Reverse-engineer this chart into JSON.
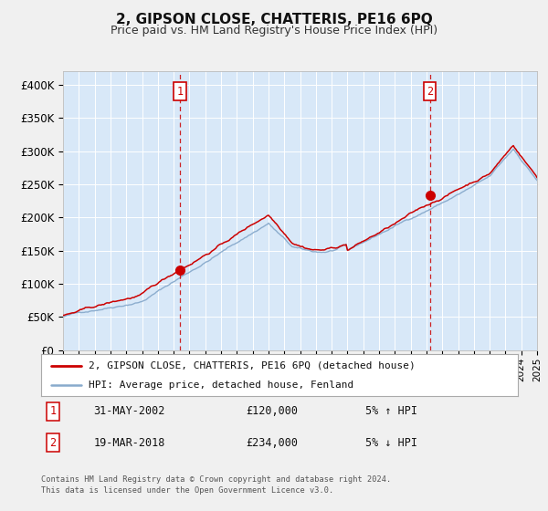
{
  "title": "2, GIPSON CLOSE, CHATTERIS, PE16 6PQ",
  "subtitle": "Price paid vs. HM Land Registry's House Price Index (HPI)",
  "legend_entry1": "2, GIPSON CLOSE, CHATTERIS, PE16 6PQ (detached house)",
  "legend_entry2": "HPI: Average price, detached house, Fenland",
  "footer_line1": "Contains HM Land Registry data © Crown copyright and database right 2024.",
  "footer_line2": "This data is licensed under the Open Government Licence v3.0.",
  "sale1_label": "1",
  "sale1_date": "31-MAY-2002",
  "sale1_price": "£120,000",
  "sale1_hpi": "5% ↑ HPI",
  "sale2_label": "2",
  "sale2_date": "19-MAR-2018",
  "sale2_price": "£234,000",
  "sale2_hpi": "5% ↓ HPI",
  "sale1_x": 2002.42,
  "sale1_y": 120000,
  "sale2_x": 2018.21,
  "sale2_y": 234000,
  "vline1_x": 2002.42,
  "vline2_x": 2018.21,
  "ylim": [
    0,
    420000
  ],
  "xlim": [
    1995,
    2025
  ],
  "yticks": [
    0,
    50000,
    100000,
    150000,
    200000,
    250000,
    300000,
    350000,
    400000
  ],
  "ytick_labels": [
    "£0",
    "£50K",
    "£100K",
    "£150K",
    "£200K",
    "£250K",
    "£300K",
    "£350K",
    "£400K"
  ],
  "fig_bg_color": "#f0f0f0",
  "plot_bg_color": "#d8e8f8",
  "red_color": "#cc0000",
  "blue_color": "#88aacc",
  "vline_color": "#cc0000",
  "grid_color": "#ffffff",
  "marker_color": "#cc0000",
  "legend_box_color": "#aaaaaa",
  "title_fontsize": 11,
  "subtitle_fontsize": 9
}
